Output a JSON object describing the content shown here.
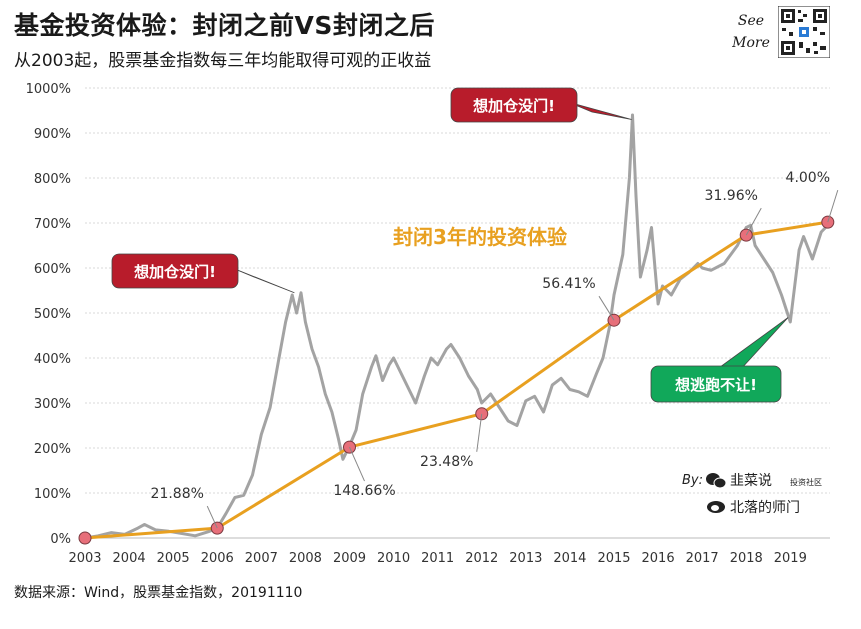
{
  "header": {
    "title": "基金投资体验：封闭之前VS封闭之后",
    "subtitle": "从2003起，股票基金指数每三年均能取得可观的正收益",
    "see_more": [
      "See",
      "More"
    ]
  },
  "footer": {
    "source": "数据来源：Wind，股票基金指数，20191110"
  },
  "colors": {
    "index_line": "#a3a3a3",
    "closed_line": "#e8a020",
    "marker_fill": "#e76f7a",
    "callout_red": "#b81c2b",
    "callout_green": "#11a85a",
    "grid": "#d9d9d9",
    "callout_text": "#ffffff",
    "overlay_label": "#e8a020"
  },
  "chart_data": {
    "type": "line",
    "title": "",
    "xlabel": "",
    "ylabel": "",
    "x_ticks": [
      "2003",
      "2004",
      "2005",
      "2006",
      "2007",
      "2008",
      "2009",
      "2010",
      "2011",
      "2012",
      "2013",
      "2014",
      "2015",
      "2016",
      "2017",
      "2018",
      "2019"
    ],
    "y_ticks": [
      "0%",
      "100%",
      "200%",
      "300%",
      "400%",
      "500%",
      "600%",
      "700%",
      "800%",
      "900%",
      "1000%"
    ],
    "xlim": [
      2003,
      2019.9
    ],
    "ylim": [
      0,
      1000
    ],
    "grid": true,
    "overlay_label": "封闭3年的投资体验",
    "series": [
      {
        "points": [
          [
            2003.0,
            0
          ],
          [
            2003.3,
            5
          ],
          [
            2003.6,
            12
          ],
          [
            2003.9,
            8
          ],
          [
            2004.2,
            22
          ],
          [
            2004.35,
            30
          ],
          [
            2004.6,
            18
          ],
          [
            2004.9,
            15
          ],
          [
            2005.2,
            10
          ],
          [
            2005.5,
            5
          ],
          [
            2005.8,
            14
          ],
          [
            2006.0,
            22
          ],
          [
            2006.2,
            55
          ],
          [
            2006.4,
            90
          ],
          [
            2006.6,
            95
          ],
          [
            2006.8,
            140
          ],
          [
            2007.0,
            230
          ],
          [
            2007.2,
            290
          ],
          [
            2007.4,
            400
          ],
          [
            2007.55,
            480
          ],
          [
            2007.7,
            540
          ],
          [
            2007.8,
            500
          ],
          [
            2007.9,
            545
          ],
          [
            2008.0,
            480
          ],
          [
            2008.15,
            420
          ],
          [
            2008.3,
            380
          ],
          [
            2008.45,
            320
          ],
          [
            2008.6,
            280
          ],
          [
            2008.75,
            220
          ],
          [
            2008.85,
            175
          ],
          [
            2009.0,
            205
          ],
          [
            2009.15,
            240
          ],
          [
            2009.3,
            320
          ],
          [
            2009.5,
            380
          ],
          [
            2009.6,
            405
          ],
          [
            2009.75,
            350
          ],
          [
            2009.9,
            385
          ],
          [
            2010.0,
            400
          ],
          [
            2010.2,
            360
          ],
          [
            2010.4,
            320
          ],
          [
            2010.5,
            300
          ],
          [
            2010.7,
            360
          ],
          [
            2010.85,
            400
          ],
          [
            2011.0,
            385
          ],
          [
            2011.2,
            420
          ],
          [
            2011.3,
            430
          ],
          [
            2011.5,
            400
          ],
          [
            2011.7,
            360
          ],
          [
            2011.9,
            330
          ],
          [
            2012.0,
            300
          ],
          [
            2012.2,
            320
          ],
          [
            2012.4,
            290
          ],
          [
            2012.6,
            260
          ],
          [
            2012.8,
            250
          ],
          [
            2013.0,
            305
          ],
          [
            2013.2,
            315
          ],
          [
            2013.4,
            280
          ],
          [
            2013.6,
            340
          ],
          [
            2013.8,
            355
          ],
          [
            2014.0,
            330
          ],
          [
            2014.2,
            325
          ],
          [
            2014.4,
            315
          ],
          [
            2014.6,
            365
          ],
          [
            2014.75,
            400
          ],
          [
            2014.9,
            470
          ],
          [
            2015.0,
            540
          ],
          [
            2015.2,
            630
          ],
          [
            2015.35,
            800
          ],
          [
            2015.42,
            940
          ],
          [
            2015.5,
            760
          ],
          [
            2015.6,
            580
          ],
          [
            2015.75,
            640
          ],
          [
            2015.85,
            690
          ],
          [
            2016.0,
            520
          ],
          [
            2016.1,
            560
          ],
          [
            2016.3,
            540
          ],
          [
            2016.5,
            575
          ],
          [
            2016.7,
            590
          ],
          [
            2016.9,
            610
          ],
          [
            2017.0,
            600
          ],
          [
            2017.2,
            595
          ],
          [
            2017.5,
            610
          ],
          [
            2017.8,
            650
          ],
          [
            2018.0,
            690
          ],
          [
            2018.1,
            695
          ],
          [
            2018.2,
            650
          ],
          [
            2018.4,
            620
          ],
          [
            2018.6,
            590
          ],
          [
            2018.8,
            540
          ],
          [
            2019.0,
            480
          ],
          [
            2019.1,
            560
          ],
          [
            2019.2,
            640
          ],
          [
            2019.3,
            670
          ],
          [
            2019.5,
            620
          ],
          [
            2019.7,
            680
          ],
          [
            2019.9,
            700
          ]
        ]
      },
      {
        "points": [
          [
            2003.0,
            0
          ],
          [
            2006.0,
            22
          ],
          [
            2009.0,
            202
          ],
          [
            2012.0,
            276
          ],
          [
            2015.0,
            484
          ],
          [
            2018.0,
            673
          ],
          [
            2019.85,
            702
          ]
        ]
      }
    ],
    "annotations": [
      {
        "text": "21.88%",
        "x": 2006.0,
        "y": 22
      },
      {
        "text": "148.66%",
        "x": 2009.0,
        "y": 202
      },
      {
        "text": "23.48%",
        "x": 2012.0,
        "y": 276
      },
      {
        "text": "56.41%",
        "x": 2015.0,
        "y": 484
      },
      {
        "text": "31.96%",
        "x": 2018.0,
        "y": 673
      },
      {
        "text": "4.00%",
        "x": 2019.85,
        "y": 702
      }
    ],
    "callouts": [
      {
        "text": "想加仓没门!",
        "style": "red",
        "pointer_x": 2007.75,
        "pointer_y": 545
      },
      {
        "text": "想加仓没门!",
        "style": "red",
        "pointer_x": 2015.4,
        "pointer_y": 930
      },
      {
        "text": "想逃跑不让!",
        "style": "green",
        "pointer_x": 2018.95,
        "pointer_y": 490
      }
    ]
  },
  "credits": {
    "by_label": "By:",
    "wechat_name": "韭菜说",
    "wechat_tag": "投资社区",
    "weibo_name": "北落的师门"
  }
}
